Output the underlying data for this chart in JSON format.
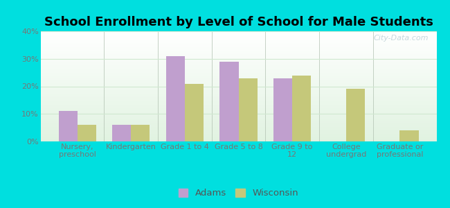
{
  "title": "School Enrollment by Level of School for Male Students",
  "categories": [
    "Nursery,\npreschool",
    "Kindergarten",
    "Grade 1 to 4",
    "Grade 5 to 8",
    "Grade 9 to\n12",
    "College\nundergrad",
    "Graduate or\nprofessional"
  ],
  "adams": [
    11,
    6,
    31,
    29,
    23,
    0,
    0
  ],
  "wisconsin": [
    6,
    6,
    21,
    23,
    24,
    19,
    4
  ],
  "adams_color": "#c09fce",
  "wisconsin_color": "#c5c87a",
  "bg_outer": "#00dfdf",
  "ylim": [
    0,
    40
  ],
  "yticks": [
    0,
    10,
    20,
    30,
    40
  ],
  "bar_width": 0.35,
  "title_fontsize": 13,
  "tick_fontsize": 8,
  "legend_fontsize": 9.5,
  "grid_color": "#d0e8d0",
  "watermark_text": "City-Data.com",
  "watermark_color": "#b0c8d0",
  "watermark_alpha": 0.7
}
